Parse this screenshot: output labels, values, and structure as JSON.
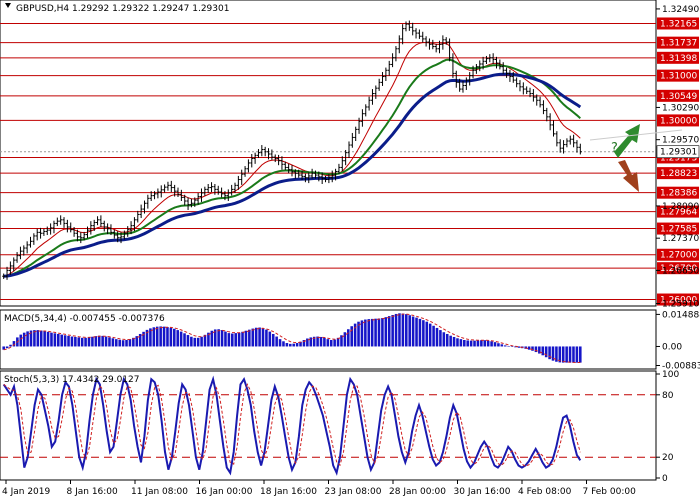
{
  "header": {
    "symbol": "GBPUSD,H4",
    "ohlc": "1.29292 1.29322 1.29247 1.29301"
  },
  "chart_data": [
    {
      "type": "candlestick",
      "title": "GBPUSD,H4",
      "ylim": [
        1.259,
        1.326
      ],
      "x_ticks": [
        "4 Jan 2019",
        "8 Jan 16:00",
        "11 Jan 08:00",
        "16 Jan 00:00",
        "18 Jan 16:00",
        "23 Jan 08:00",
        "28 Jan 00:00",
        "30 Jan 16:00",
        "4 Feb 08:00",
        "7 Feb 00:00"
      ],
      "y_ticks": [
        "1.32490",
        "1.30290",
        "1.29570",
        "1.28090",
        "1.27370",
        "1.26650",
        "1.25910"
      ],
      "levels": [
        {
          "value": "1.32165",
          "v": 1.32165
        },
        {
          "value": "1.31737",
          "v": 1.31737
        },
        {
          "value": "1.31398",
          "v": 1.31398
        },
        {
          "value": "1.31000",
          "v": 1.31
        },
        {
          "value": "1.30549",
          "v": 1.30549
        },
        {
          "value": "1.30000",
          "v": 1.3
        },
        {
          "value": "1.29173",
          "v": 1.29173
        },
        {
          "value": "1.28823",
          "v": 1.28823
        },
        {
          "value": "1.28386",
          "v": 1.28386
        },
        {
          "value": "1.27964",
          "v": 1.27964
        },
        {
          "value": "1.27585",
          "v": 1.27585
        },
        {
          "value": "1.27000",
          "v": 1.27
        },
        {
          "value": "1.26700",
          "v": 1.267
        },
        {
          "value": "1.26000",
          "v": 1.26
        }
      ],
      "current_price": {
        "value": "1.29301",
        "v": 1.29301
      },
      "close": [
        1.2652,
        1.2665,
        1.2675,
        1.2688,
        1.2698,
        1.2708,
        1.2715,
        1.2722,
        1.273,
        1.2742,
        1.275,
        1.2748,
        1.2752,
        1.2755,
        1.276,
        1.277,
        1.2775,
        1.2778,
        1.277,
        1.2762,
        1.2756,
        1.2748,
        1.274,
        1.2738,
        1.2745,
        1.2755,
        1.2765,
        1.2772,
        1.2778,
        1.277,
        1.2762,
        1.2758,
        1.275,
        1.2744,
        1.2738,
        1.274,
        1.2748,
        1.2756,
        1.2765,
        1.2778,
        1.279,
        1.2802,
        1.2815,
        1.2826,
        1.2832,
        1.2836,
        1.284,
        1.2845,
        1.2851,
        1.2855,
        1.285,
        1.2842,
        1.2835,
        1.2828,
        1.282,
        1.2812,
        1.2815,
        1.2822,
        1.283,
        1.2838,
        1.2846,
        1.285,
        1.2852,
        1.2846,
        1.284,
        1.2836,
        1.2832,
        1.2838,
        1.2846,
        1.2855,
        1.2868,
        1.288,
        1.2892,
        1.2905,
        1.2915,
        1.2922,
        1.2928,
        1.2935,
        1.293,
        1.2925,
        1.2918,
        1.2915,
        1.291,
        1.2902,
        1.2895,
        1.289,
        1.2885,
        1.2882,
        1.2878,
        1.2875,
        1.2872,
        1.2876,
        1.2882,
        1.2878,
        1.2874,
        1.287,
        1.2868,
        1.2872,
        1.2878,
        1.2886,
        1.2895,
        1.291,
        1.2928,
        1.2945,
        1.2962,
        1.298,
        1.2998,
        1.3015,
        1.303,
        1.3045,
        1.306,
        1.3072,
        1.3085,
        1.3098,
        1.3112,
        1.3125,
        1.314,
        1.316,
        1.3182,
        1.3205,
        1.3215,
        1.3208,
        1.32,
        1.3195,
        1.3188,
        1.3182,
        1.3175,
        1.317,
        1.3165,
        1.316,
        1.317,
        1.318,
        1.3175,
        1.314,
        1.3105,
        1.3085,
        1.307,
        1.3078,
        1.309,
        1.31,
        1.3112,
        1.312,
        1.3126,
        1.3132,
        1.3138,
        1.314,
        1.3136,
        1.3128,
        1.312,
        1.3112,
        1.3105,
        1.3098,
        1.309,
        1.3082,
        1.3075,
        1.307,
        1.3065,
        1.306,
        1.3052,
        1.3045,
        1.3035,
        1.3022,
        1.3008,
        1.299,
        1.297,
        1.295,
        1.2938,
        1.2946,
        1.2954,
        1.2958,
        1.295,
        1.294,
        1.293
      ]
    },
    {
      "type": "bar",
      "title": "MACD(5,34,4) -0.007455 -0.007376",
      "ylim": [
        -0.01,
        0.016
      ],
      "y_ticks": [
        "0.014888",
        "0.00",
        "-0.008833"
      ],
      "values": [
        -0.0015,
        -0.0008,
        0.0008,
        0.0025,
        0.0042,
        0.0055,
        0.0064,
        0.007,
        0.0074,
        0.0076,
        0.0076,
        0.0074,
        0.0071,
        0.0068,
        0.0064,
        0.0061,
        0.0058,
        0.0055,
        0.0052,
        0.0049,
        0.0046,
        0.0044,
        0.0042,
        0.004,
        0.004,
        0.0042,
        0.0045,
        0.0048,
        0.005,
        0.0049,
        0.0046,
        0.0042,
        0.0038,
        0.0034,
        0.0031,
        0.0029,
        0.003,
        0.0034,
        0.004,
        0.0048,
        0.0058,
        0.0068,
        0.0077,
        0.0084,
        0.0089,
        0.0092,
        0.0093,
        0.0092,
        0.009,
        0.0087,
        0.0082,
        0.0076,
        0.0069,
        0.0061,
        0.0053,
        0.0045,
        0.004,
        0.004,
        0.0045,
        0.0054,
        0.0064,
        0.0073,
        0.0079,
        0.008,
        0.0076,
        0.0069,
        0.0062,
        0.006,
        0.0062,
        0.0064,
        0.0068,
        0.0073,
        0.0078,
        0.0083,
        0.0087,
        0.0088,
        0.0085,
        0.0078,
        0.0069,
        0.0058,
        0.0046,
        0.0034,
        0.0024,
        0.0016,
        0.0012,
        0.0013,
        0.0016,
        0.0022,
        0.003,
        0.0037,
        0.0042,
        0.0045,
        0.0046,
        0.0044,
        0.004,
        0.0034,
        0.003,
        0.0032,
        0.004,
        0.0052,
        0.0066,
        0.008,
        0.0094,
        0.0106,
        0.0115,
        0.0121,
        0.0125,
        0.0127,
        0.0128,
        0.0129,
        0.013,
        0.0132,
        0.0136,
        0.0141,
        0.0146,
        0.0151,
        0.0154,
        0.0153,
        0.015,
        0.0145,
        0.0139,
        0.0134,
        0.0128,
        0.0122,
        0.0115,
        0.0106,
        0.0096,
        0.0086,
        0.0076,
        0.0066,
        0.0058,
        0.005,
        0.0044,
        0.0038,
        0.0034,
        0.003,
        0.0028,
        0.0027,
        0.0027,
        0.0028,
        0.0029,
        0.0029,
        0.0027,
        0.0024,
        0.002,
        0.0015,
        0.001,
        0.0005,
        0.0001,
        -0.0002,
        -0.0004,
        -0.0006,
        -0.0008,
        -0.0011,
        -0.0015,
        -0.002,
        -0.0026,
        -0.0033,
        -0.0041,
        -0.005,
        -0.0059,
        -0.0066,
        -0.0071,
        -0.0074,
        -0.0075,
        -0.0075,
        -0.0075,
        -0.0075,
        -0.0075,
        -0.0075
      ]
    },
    {
      "type": "line",
      "title": "Stoch(5,3,3) 17.4342 29.0127",
      "ylim": [
        0,
        100
      ],
      "y_ticks": [
        "100",
        "80",
        "20",
        "0"
      ],
      "values": [
        90,
        85,
        80,
        88,
        70,
        40,
        10,
        20,
        45,
        70,
        85,
        80,
        65,
        50,
        30,
        35,
        55,
        80,
        92,
        88,
        70,
        45,
        20,
        10,
        25,
        55,
        80,
        95,
        90,
        70,
        45,
        25,
        30,
        55,
        80,
        95,
        90,
        75,
        50,
        30,
        15,
        40,
        75,
        95,
        92,
        80,
        55,
        25,
        8,
        20,
        45,
        72,
        90,
        85,
        70,
        45,
        20,
        8,
        25,
        55,
        85,
        95,
        80,
        55,
        30,
        10,
        5,
        25,
        60,
        90,
        95,
        85,
        70,
        45,
        25,
        12,
        25,
        50,
        75,
        88,
        78,
        60,
        40,
        20,
        8,
        15,
        40,
        70,
        85,
        92,
        88,
        80,
        70,
        60,
        45,
        30,
        12,
        5,
        20,
        50,
        80,
        95,
        90,
        80,
        60,
        40,
        20,
        8,
        15,
        40,
        65,
        80,
        88,
        80,
        60,
        40,
        25,
        15,
        25,
        45,
        60,
        70,
        60,
        45,
        30,
        18,
        12,
        15,
        25,
        40,
        58,
        70,
        62,
        45,
        28,
        16,
        10,
        14,
        22,
        30,
        35,
        30,
        20,
        12,
        10,
        14,
        22,
        30,
        26,
        18,
        12,
        10,
        12,
        16,
        22,
        28,
        22,
        15,
        10,
        12,
        18,
        30,
        45,
        58,
        60,
        50,
        35,
        22,
        17
      ]
    }
  ]
}
